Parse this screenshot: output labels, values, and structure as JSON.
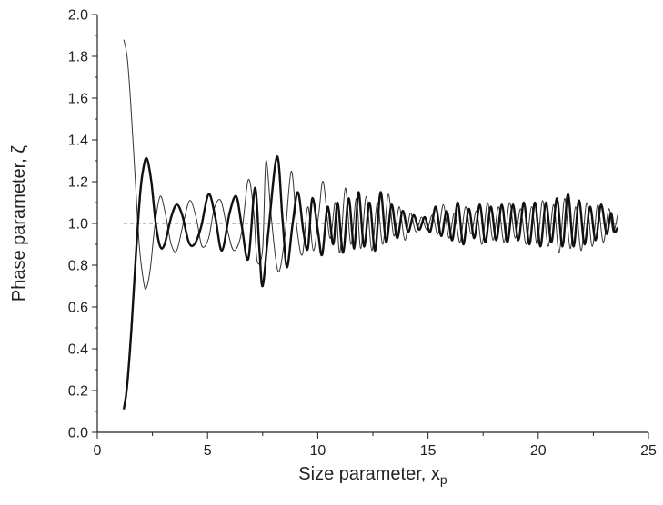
{
  "chart_data": {
    "type": "line",
    "xlabel": "Size parameter, x",
    "xlabel_sub": "p",
    "ylabel": "Phase parameter, ζ",
    "xlim": [
      0,
      25
    ],
    "ylim": [
      0.0,
      2.0
    ],
    "x_ticks": [
      "0",
      "5",
      "10",
      "15",
      "20",
      "25"
    ],
    "y_ticks": [
      "0.0",
      "0.2",
      "0.4",
      "0.6",
      "0.8",
      "1.0",
      "1.2",
      "1.4",
      "1.6",
      "1.8",
      "2.0"
    ],
    "grid": false,
    "legend": "none",
    "reference_line": {
      "y": 1.0,
      "style": "dashed",
      "color": "#808080"
    },
    "series": [
      {
        "style": "thin",
        "color": "#333333",
        "x_range": [
          1.2,
          23.6
        ],
        "points": [
          [
            1.2,
            1.88
          ],
          [
            1.35,
            1.8
          ],
          [
            1.5,
            1.6
          ],
          [
            1.7,
            1.25
          ],
          [
            1.9,
            0.9
          ],
          [
            2.1,
            0.72
          ],
          [
            2.22,
            0.69
          ],
          [
            2.4,
            0.78
          ],
          [
            2.6,
            0.98
          ],
          [
            2.85,
            1.13
          ],
          [
            3.1,
            1.04
          ],
          [
            3.35,
            0.9
          ],
          [
            3.6,
            0.87
          ],
          [
            3.9,
            1.0
          ],
          [
            4.2,
            1.11
          ],
          [
            4.5,
            1.02
          ],
          [
            4.75,
            0.89
          ],
          [
            5.05,
            0.93
          ],
          [
            5.3,
            1.07
          ],
          [
            5.6,
            1.11
          ],
          [
            5.9,
            0.97
          ],
          [
            6.2,
            0.87
          ],
          [
            6.55,
            0.96
          ],
          [
            6.85,
            1.21
          ],
          [
            7.1,
            1.05
          ],
          [
            7.25,
            0.82
          ],
          [
            7.5,
            0.88
          ],
          [
            7.65,
            1.3
          ],
          [
            7.9,
            1.02
          ],
          [
            8.2,
            0.77
          ],
          [
            8.5,
            0.93
          ],
          [
            8.8,
            1.25
          ],
          [
            9.05,
            0.98
          ],
          [
            9.3,
            0.85
          ],
          [
            9.55,
            1.08
          ],
          [
            9.8,
            0.87
          ],
          [
            10.05,
            1.05
          ],
          [
            10.25,
            1.2
          ],
          [
            10.55,
            0.93
          ],
          [
            10.8,
            1.1
          ],
          [
            11.0,
            0.86
          ],
          [
            11.25,
            1.17
          ],
          [
            11.5,
            0.9
          ],
          [
            11.75,
            1.12
          ],
          [
            11.95,
            0.88
          ],
          [
            12.2,
            1.13
          ],
          [
            12.45,
            0.87
          ],
          [
            12.7,
            1.1
          ],
          [
            12.95,
            0.9
          ],
          [
            13.2,
            1.14
          ],
          [
            13.45,
            0.94
          ],
          [
            13.7,
            1.08
          ],
          [
            13.95,
            0.92
          ],
          [
            14.2,
            1.05
          ],
          [
            14.45,
            0.96
          ],
          [
            14.7,
            1.03
          ],
          [
            14.95,
            0.97
          ],
          [
            15.2,
            1.04
          ],
          [
            15.45,
            0.95
          ],
          [
            15.7,
            1.09
          ],
          [
            15.95,
            0.93
          ],
          [
            16.2,
            1.05
          ],
          [
            16.45,
            0.91
          ],
          [
            16.7,
            1.08
          ],
          [
            16.95,
            0.95
          ],
          [
            17.2,
            1.06
          ],
          [
            17.45,
            0.9
          ],
          [
            17.7,
            1.1
          ],
          [
            17.95,
            0.92
          ],
          [
            18.2,
            1.08
          ],
          [
            18.45,
            0.91
          ],
          [
            18.7,
            1.1
          ],
          [
            18.95,
            0.93
          ],
          [
            19.2,
            1.07
          ],
          [
            19.45,
            0.9
          ],
          [
            19.7,
            1.08
          ],
          [
            19.95,
            0.9
          ],
          [
            20.2,
            1.11
          ],
          [
            20.45,
            0.89
          ],
          [
            20.7,
            1.09
          ],
          [
            20.95,
            0.86
          ],
          [
            21.2,
            1.12
          ],
          [
            21.45,
            0.88
          ],
          [
            21.7,
            1.08
          ],
          [
            21.95,
            0.87
          ],
          [
            22.2,
            1.1
          ],
          [
            22.45,
            0.89
          ],
          [
            22.7,
            1.09
          ],
          [
            22.95,
            0.91
          ],
          [
            23.2,
            1.07
          ],
          [
            23.4,
            0.96
          ],
          [
            23.6,
            1.04
          ]
        ]
      },
      {
        "style": "bold",
        "color": "#111111",
        "x_range": [
          1.2,
          23.6
        ],
        "points": [
          [
            1.2,
            0.11
          ],
          [
            1.35,
            0.22
          ],
          [
            1.55,
            0.5
          ],
          [
            1.75,
            0.85
          ],
          [
            1.95,
            1.15
          ],
          [
            2.1,
            1.27
          ],
          [
            2.25,
            1.31
          ],
          [
            2.45,
            1.2
          ],
          [
            2.65,
            1.0
          ],
          [
            2.85,
            0.89
          ],
          [
            3.05,
            0.9
          ],
          [
            3.35,
            1.03
          ],
          [
            3.6,
            1.09
          ],
          [
            3.85,
            1.04
          ],
          [
            4.15,
            0.91
          ],
          [
            4.4,
            0.9
          ],
          [
            4.7,
            0.98
          ],
          [
            5.05,
            1.14
          ],
          [
            5.35,
            1.03
          ],
          [
            5.65,
            0.87
          ],
          [
            6.0,
            1.05
          ],
          [
            6.3,
            1.13
          ],
          [
            6.55,
            0.99
          ],
          [
            6.85,
            0.83
          ],
          [
            7.15,
            1.17
          ],
          [
            7.35,
            0.88
          ],
          [
            7.5,
            0.7
          ],
          [
            7.75,
            0.95
          ],
          [
            8.15,
            1.32
          ],
          [
            8.4,
            1.02
          ],
          [
            8.6,
            0.79
          ],
          [
            8.85,
            0.99
          ],
          [
            9.1,
            1.15
          ],
          [
            9.35,
            0.96
          ],
          [
            9.55,
            0.88
          ],
          [
            9.75,
            1.12
          ],
          [
            10.0,
            0.97
          ],
          [
            10.2,
            0.85
          ],
          [
            10.45,
            1.08
          ],
          [
            10.7,
            0.9
          ],
          [
            10.9,
            1.1
          ],
          [
            11.15,
            0.86
          ],
          [
            11.4,
            1.12
          ],
          [
            11.65,
            0.88
          ],
          [
            11.85,
            1.15
          ],
          [
            12.1,
            0.89
          ],
          [
            12.35,
            1.1
          ],
          [
            12.6,
            0.87
          ],
          [
            12.85,
            1.15
          ],
          [
            13.1,
            0.91
          ],
          [
            13.35,
            1.09
          ],
          [
            13.6,
            0.93
          ],
          [
            13.85,
            1.06
          ],
          [
            14.1,
            0.96
          ],
          [
            14.35,
            1.04
          ],
          [
            14.6,
            0.97
          ],
          [
            14.85,
            1.03
          ],
          [
            15.1,
            0.96
          ],
          [
            15.35,
            1.08
          ],
          [
            15.6,
            0.94
          ],
          [
            15.85,
            1.06
          ],
          [
            16.1,
            0.92
          ],
          [
            16.35,
            1.1
          ],
          [
            16.6,
            0.9
          ],
          [
            16.85,
            1.07
          ],
          [
            17.1,
            0.93
          ],
          [
            17.35,
            1.09
          ],
          [
            17.6,
            0.91
          ],
          [
            17.85,
            1.08
          ],
          [
            18.1,
            0.92
          ],
          [
            18.35,
            1.09
          ],
          [
            18.6,
            0.91
          ],
          [
            18.85,
            1.09
          ],
          [
            19.1,
            0.92
          ],
          [
            19.35,
            1.1
          ],
          [
            19.6,
            0.9
          ],
          [
            19.85,
            1.1
          ],
          [
            20.1,
            0.89
          ],
          [
            20.35,
            1.1
          ],
          [
            20.6,
            0.91
          ],
          [
            20.85,
            1.12
          ],
          [
            21.1,
            0.89
          ],
          [
            21.35,
            1.14
          ],
          [
            21.6,
            0.89
          ],
          [
            21.85,
            1.11
          ],
          [
            22.1,
            0.9
          ],
          [
            22.35,
            1.08
          ],
          [
            22.6,
            0.92
          ],
          [
            22.85,
            1.09
          ],
          [
            23.1,
            0.95
          ],
          [
            23.3,
            1.05
          ],
          [
            23.45,
            0.96
          ],
          [
            23.6,
            0.98
          ]
        ]
      }
    ]
  }
}
